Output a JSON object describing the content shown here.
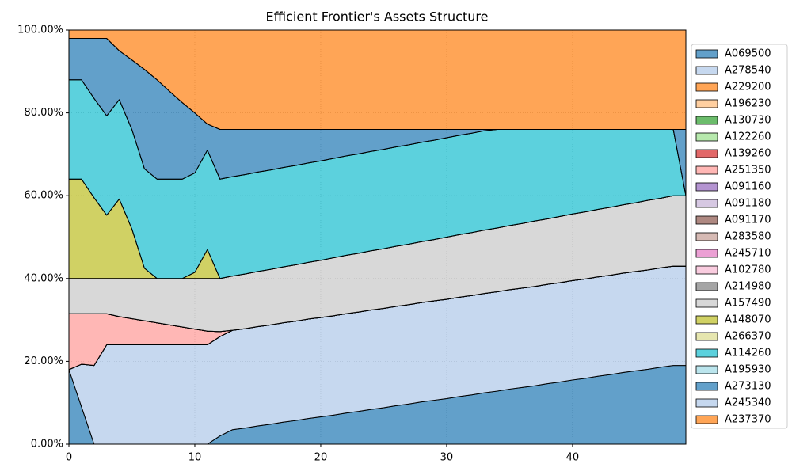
{
  "chart_data": {
    "type": "stacked_area",
    "title": "Efficient Frontier's Assets Structure",
    "x": [
      0,
      1,
      2,
      3,
      4,
      5,
      6,
      7,
      8,
      9,
      10,
      11,
      12,
      13,
      14,
      15,
      16,
      17,
      18,
      19,
      20,
      21,
      22,
      23,
      24,
      25,
      26,
      27,
      28,
      29,
      30,
      31,
      32,
      33,
      34,
      35,
      36,
      37,
      38,
      39,
      40,
      41,
      42,
      43,
      44,
      45,
      46,
      47,
      48,
      49
    ],
    "xlim": [
      0,
      49
    ],
    "xticks": [
      0,
      10,
      20,
      30,
      40
    ],
    "ylim": [
      0,
      100
    ],
    "yticks": [
      {
        "value": 0,
        "label": "0.00%"
      },
      {
        "value": 20,
        "label": "20.00%"
      },
      {
        "value": 40,
        "label": "40.00%"
      },
      {
        "value": 60,
        "label": "60.00%"
      },
      {
        "value": 80,
        "label": "80.00%"
      },
      {
        "value": 100,
        "label": "100.00%"
      }
    ],
    "grid": true,
    "legend": "outside right",
    "alpha": 0.7,
    "series": [
      {
        "name": "A069500",
        "color": "#1f77b4",
        "values": [
          18,
          9,
          0,
          0,
          0,
          0,
          0,
          0,
          0,
          0,
          0,
          0,
          2,
          3.5,
          3.9,
          4.4,
          4.8,
          5.3,
          5.7,
          6.2,
          6.6,
          7.0,
          7.5,
          7.9,
          8.4,
          8.8,
          9.3,
          9.7,
          10.2,
          10.6,
          11.0,
          11.5,
          11.9,
          12.4,
          12.8,
          13.3,
          13.7,
          14.1,
          14.6,
          15.0,
          15.5,
          15.9,
          16.4,
          16.8,
          17.3,
          17.7,
          18.1,
          18.6,
          19.0,
          19.0
        ]
      },
      {
        "name": "A278540",
        "color": "#aec7e8",
        "values": [
          0,
          10.3,
          19,
          24,
          24,
          24,
          24,
          24,
          24,
          24,
          24,
          24,
          24,
          24,
          24,
          24,
          24,
          24,
          24,
          24,
          24,
          24,
          24,
          24,
          24,
          24,
          24,
          24,
          24,
          24,
          24,
          24,
          24,
          24,
          24,
          24,
          24,
          24,
          24,
          24,
          24,
          24,
          24,
          24,
          24,
          24,
          24,
          24,
          24,
          24
        ]
      },
      {
        "name": "A229200",
        "color": "#ff7f0e",
        "values": [
          0,
          0,
          0,
          0,
          0,
          0,
          0,
          0,
          0,
          0,
          0,
          0,
          0,
          0,
          0,
          0,
          0,
          0,
          0,
          0,
          0,
          0,
          0,
          0,
          0,
          0,
          0,
          0,
          0,
          0,
          0,
          0,
          0,
          0,
          0,
          0,
          0,
          0,
          0,
          0,
          0,
          0,
          0,
          0,
          0,
          0,
          0,
          0,
          0,
          0
        ]
      },
      {
        "name": "A196230",
        "color": "#ffbb78",
        "values": [
          0,
          0,
          0,
          0,
          0,
          0,
          0,
          0,
          0,
          0,
          0,
          0,
          0,
          0,
          0,
          0,
          0,
          0,
          0,
          0,
          0,
          0,
          0,
          0,
          0,
          0,
          0,
          0,
          0,
          0,
          0,
          0,
          0,
          0,
          0,
          0,
          0,
          0,
          0,
          0,
          0,
          0,
          0,
          0,
          0,
          0,
          0,
          0,
          0,
          0
        ]
      },
      {
        "name": "A130730",
        "color": "#2ca02c",
        "values": [
          0,
          0,
          0,
          0,
          0,
          0,
          0,
          0,
          0,
          0,
          0,
          0,
          0,
          0,
          0,
          0,
          0,
          0,
          0,
          0,
          0,
          0,
          0,
          0,
          0,
          0,
          0,
          0,
          0,
          0,
          0,
          0,
          0,
          0,
          0,
          0,
          0,
          0,
          0,
          0,
          0,
          0,
          0,
          0,
          0,
          0,
          0,
          0,
          0,
          0
        ]
      },
      {
        "name": "A122260",
        "color": "#98df8a",
        "values": [
          0,
          0,
          0,
          0,
          0,
          0,
          0,
          0,
          0,
          0,
          0,
          0,
          0,
          0,
          0,
          0,
          0,
          0,
          0,
          0,
          0,
          0,
          0,
          0,
          0,
          0,
          0,
          0,
          0,
          0,
          0,
          0,
          0,
          0,
          0,
          0,
          0,
          0,
          0,
          0,
          0,
          0,
          0,
          0,
          0,
          0,
          0,
          0,
          0,
          0
        ]
      },
      {
        "name": "A139260",
        "color": "#d62728",
        "values": [
          0,
          0,
          0,
          0,
          0,
          0,
          0,
          0,
          0,
          0,
          0,
          0,
          0,
          0,
          0,
          0,
          0,
          0,
          0,
          0,
          0,
          0,
          0,
          0,
          0,
          0,
          0,
          0,
          0,
          0,
          0,
          0,
          0,
          0,
          0,
          0,
          0,
          0,
          0,
          0,
          0,
          0,
          0,
          0,
          0,
          0,
          0,
          0,
          0,
          0
        ]
      },
      {
        "name": "A251350",
        "color": "#ff9896",
        "values": [
          13.5,
          12.2,
          12.5,
          7.5,
          6.8,
          6.3,
          5.8,
          5.3,
          4.8,
          4.3,
          3.8,
          3.3,
          1.2,
          0,
          0,
          0,
          0,
          0,
          0,
          0,
          0,
          0,
          0,
          0,
          0,
          0,
          0,
          0,
          0,
          0,
          0,
          0,
          0,
          0,
          0,
          0,
          0,
          0,
          0,
          0,
          0,
          0,
          0,
          0,
          0,
          0,
          0,
          0,
          0,
          0
        ]
      },
      {
        "name": "A091160",
        "color": "#9467bd",
        "values": [
          0,
          0,
          0,
          0,
          0,
          0,
          0,
          0,
          0,
          0,
          0,
          0,
          0,
          0,
          0,
          0,
          0,
          0,
          0,
          0,
          0,
          0,
          0,
          0,
          0,
          0,
          0,
          0,
          0,
          0,
          0,
          0,
          0,
          0,
          0,
          0,
          0,
          0,
          0,
          0,
          0,
          0,
          0,
          0,
          0,
          0,
          0,
          0,
          0,
          0
        ]
      },
      {
        "name": "A091180",
        "color": "#c5b0d5",
        "values": [
          0,
          0,
          0,
          0,
          0,
          0,
          0,
          0,
          0,
          0,
          0,
          0,
          0,
          0,
          0,
          0,
          0,
          0,
          0,
          0,
          0,
          0,
          0,
          0,
          0,
          0,
          0,
          0,
          0,
          0,
          0,
          0,
          0,
          0,
          0,
          0,
          0,
          0,
          0,
          0,
          0,
          0,
          0,
          0,
          0,
          0,
          0,
          0,
          0,
          0
        ]
      },
      {
        "name": "A091170",
        "color": "#8c564b",
        "values": [
          0,
          0,
          0,
          0,
          0,
          0,
          0,
          0,
          0,
          0,
          0,
          0,
          0,
          0,
          0,
          0,
          0,
          0,
          0,
          0,
          0,
          0,
          0,
          0,
          0,
          0,
          0,
          0,
          0,
          0,
          0,
          0,
          0,
          0,
          0,
          0,
          0,
          0,
          0,
          0,
          0,
          0,
          0,
          0,
          0,
          0,
          0,
          0,
          0,
          0
        ]
      },
      {
        "name": "A283580",
        "color": "#c49c94",
        "values": [
          0,
          0,
          0,
          0,
          0,
          0,
          0,
          0,
          0,
          0,
          0,
          0,
          0,
          0,
          0,
          0,
          0,
          0,
          0,
          0,
          0,
          0,
          0,
          0,
          0,
          0,
          0,
          0,
          0,
          0,
          0,
          0,
          0,
          0,
          0,
          0,
          0,
          0,
          0,
          0,
          0,
          0,
          0,
          0,
          0,
          0,
          0,
          0,
          0,
          0
        ]
      },
      {
        "name": "A245710",
        "color": "#e377c2",
        "values": [
          0,
          0,
          0,
          0,
          0,
          0,
          0,
          0,
          0,
          0,
          0,
          0,
          0,
          0,
          0,
          0,
          0,
          0,
          0,
          0,
          0,
          0,
          0,
          0,
          0,
          0,
          0,
          0,
          0,
          0,
          0,
          0,
          0,
          0,
          0,
          0,
          0,
          0,
          0,
          0,
          0,
          0,
          0,
          0,
          0,
          0,
          0,
          0,
          0,
          0
        ]
      },
      {
        "name": "A102780",
        "color": "#f7b6d2",
        "values": [
          0,
          0,
          0,
          0,
          0,
          0,
          0,
          0,
          0,
          0,
          0,
          0,
          0,
          0,
          0,
          0,
          0,
          0,
          0,
          0,
          0,
          0,
          0,
          0,
          0,
          0,
          0,
          0,
          0,
          0,
          0,
          0,
          0,
          0,
          0,
          0,
          0,
          0,
          0,
          0,
          0,
          0,
          0,
          0,
          0,
          0,
          0,
          0,
          0,
          0
        ]
      },
      {
        "name": "A214980",
        "color": "#7f7f7f",
        "values": [
          0,
          0,
          0,
          0,
          0,
          0,
          0,
          0,
          0,
          0,
          0,
          0,
          0,
          0,
          0,
          0,
          0,
          0,
          0,
          0,
          0,
          0,
          0,
          0,
          0,
          0,
          0,
          0,
          0,
          0,
          0,
          0,
          0,
          0,
          0,
          0,
          0,
          0,
          0,
          0,
          0,
          0,
          0,
          0,
          0,
          0,
          0,
          0,
          0,
          0
        ]
      },
      {
        "name": "A157490",
        "color": "#c7c7c7",
        "values": [
          8.5,
          8.5,
          8.5,
          8.5,
          9.2,
          9.7,
          10.2,
          10.7,
          11.2,
          11.7,
          12.2,
          12.7,
          12.8,
          13.1,
          13.2,
          13.3,
          13.4,
          13.5,
          13.6,
          13.7,
          13.8,
          14.0,
          14.1,
          14.2,
          14.3,
          14.4,
          14.5,
          14.6,
          14.7,
          14.8,
          15.0,
          15.1,
          15.2,
          15.3,
          15.4,
          15.5,
          15.6,
          15.8,
          15.8,
          16.0,
          16.1,
          16.2,
          16.3,
          16.4,
          16.5,
          16.6,
          16.8,
          16.8,
          17.0,
          17.0
        ]
      },
      {
        "name": "A148070",
        "color": "#bcbd22",
        "values": [
          24,
          24,
          19.5,
          15.3,
          19.2,
          12,
          2.5,
          0,
          0,
          0,
          1.5,
          7,
          0,
          0,
          0,
          0,
          0,
          0,
          0,
          0,
          0,
          0,
          0,
          0,
          0,
          0,
          0,
          0,
          0,
          0,
          0,
          0,
          0,
          0,
          0,
          0,
          0,
          0,
          0,
          0,
          0,
          0,
          0,
          0,
          0,
          0,
          0,
          0,
          0,
          0
        ]
      },
      {
        "name": "A266370",
        "color": "#dbdb8d",
        "values": [
          0,
          0,
          0,
          0,
          0,
          0,
          0,
          0,
          0,
          0,
          0,
          0,
          0,
          0,
          0,
          0,
          0,
          0,
          0,
          0,
          0,
          0,
          0,
          0,
          0,
          0,
          0,
          0,
          0,
          0,
          0,
          0,
          0,
          0,
          0,
          0,
          0,
          0,
          0,
          0,
          0,
          0,
          0,
          0,
          0,
          0,
          0,
          0,
          0,
          0
        ]
      },
      {
        "name": "A114260",
        "color": "#17becf",
        "values": [
          24,
          24,
          24,
          24,
          24,
          24,
          24,
          24,
          24,
          24,
          24,
          24,
          24,
          24,
          24,
          24,
          24,
          24,
          24,
          24,
          24,
          24,
          24,
          24,
          24,
          24,
          24,
          24,
          24,
          24,
          24,
          24,
          24,
          24,
          23.8,
          23.2,
          22.7,
          22.1,
          21.6,
          21.0,
          20.4,
          19.9,
          19.3,
          18.8,
          18.2,
          17.7,
          17.1,
          16.6,
          16.0,
          0
        ]
      },
      {
        "name": "A195930",
        "color": "#9edae5",
        "values": [
          0,
          0,
          0,
          0,
          0,
          0,
          0,
          0,
          0,
          0,
          0,
          0,
          0,
          0,
          0,
          0,
          0,
          0,
          0,
          0,
          0,
          0,
          0,
          0,
          0,
          0,
          0,
          0,
          0,
          0,
          0,
          0,
          0,
          0,
          0,
          0,
          0,
          0,
          0,
          0,
          0,
          0,
          0,
          0,
          0,
          0,
          0,
          0,
          0,
          0
        ]
      },
      {
        "name": "A273130",
        "color": "#1f77b4",
        "values": [
          10,
          10,
          14.5,
          18.7,
          11.8,
          16.8,
          24,
          24,
          21.2,
          18.5,
          14.5,
          6.3,
          12,
          11.4,
          10.9,
          10.3,
          9.8,
          9.2,
          8.7,
          8.1,
          7.6,
          7.0,
          6.4,
          5.9,
          5.3,
          4.8,
          4.2,
          3.7,
          3.1,
          2.6,
          2.0,
          1.4,
          0.9,
          0.3,
          0,
          0,
          0,
          0,
          0,
          0,
          0,
          0,
          0,
          0,
          0,
          0,
          0,
          0,
          0,
          16
        ]
      },
      {
        "name": "A245340",
        "color": "#aec7e8",
        "values": [
          0,
          0,
          0,
          0,
          0,
          0,
          0,
          0,
          0,
          0,
          0,
          0,
          0,
          0,
          0,
          0,
          0,
          0,
          0,
          0,
          0,
          0,
          0,
          0,
          0,
          0,
          0,
          0,
          0,
          0,
          0,
          0,
          0,
          0,
          0,
          0,
          0,
          0,
          0,
          0,
          0,
          0,
          0,
          0,
          0,
          0,
          0,
          0,
          0,
          0
        ]
      },
      {
        "name": "A237370",
        "color": "#ff7f0e",
        "values": [
          2,
          2,
          2,
          2,
          5,
          7.2,
          9.5,
          12,
          14.8,
          17.5,
          20,
          22.7,
          24,
          24,
          24,
          24,
          24,
          24,
          24,
          24,
          24,
          24,
          24,
          24,
          24,
          24,
          24,
          24,
          24,
          24,
          24,
          24,
          24,
          24,
          24,
          24,
          24,
          24,
          24,
          24,
          24,
          24,
          24,
          24,
          24,
          24,
          24,
          24,
          24,
          24
        ]
      }
    ]
  }
}
